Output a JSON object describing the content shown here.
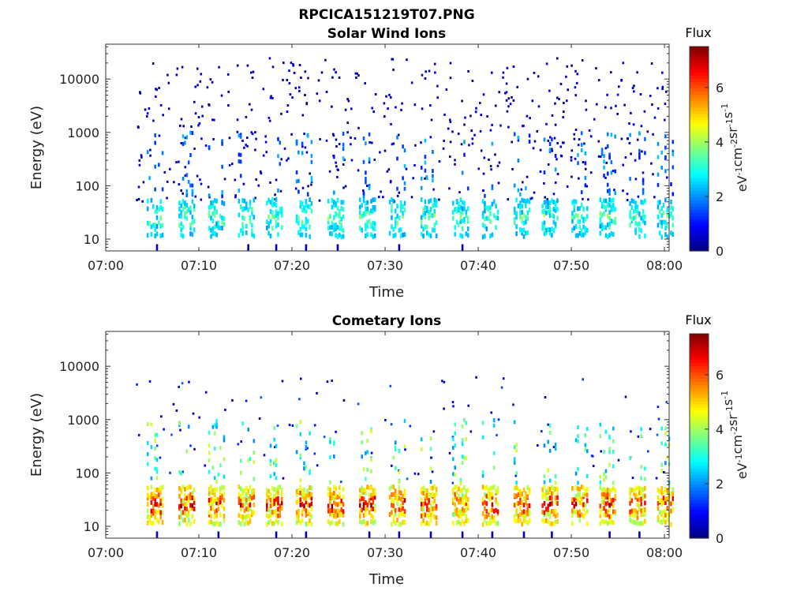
{
  "figure_title": "RPCICA151219T07.PNG",
  "colorbar": {
    "title": "Flux",
    "range": [
      0,
      7.5
    ],
    "ticks": [
      "0",
      "2",
      "4",
      "6"
    ],
    "colormap": "jet"
  },
  "chart_data": [
    {
      "type": "heatmap",
      "title": "Solar Wind Ions",
      "xlabel": "Time",
      "ylabel": "Energy (eV)",
      "ylabel_text": "Energy (eV)",
      "x_ticks": [
        "07:00",
        "07:10",
        "07:20",
        "07:30",
        "07:40",
        "07:50",
        "08:00"
      ],
      "y_ticks": [
        "10",
        "100",
        "1000",
        "10000"
      ],
      "x_range_min": [
        0,
        60.5
      ],
      "y_range": [
        6,
        45000
      ],
      "y_scale": "log",
      "colorbar_label": "eV-1cm-2sr-1s-1",
      "bursts_start_min": [
        4.4,
        7.8,
        11.0,
        14.2,
        17.2,
        20.4,
        23.8,
        27.2,
        30.4,
        33.8,
        37.2,
        40.4,
        43.8,
        46.8,
        50.0,
        53.0,
        56.2,
        59.2
      ],
      "band_flux": 3.5,
      "background_flux": 0.6
    },
    {
      "type": "heatmap",
      "title": "Cometary Ions",
      "xlabel": "Time",
      "ylabel": "Energy (eV)",
      "ylabel_text": "Energy (eV)",
      "x_ticks": [
        "07:00",
        "07:10",
        "07:20",
        "07:30",
        "07:40",
        "07:50",
        "08:00"
      ],
      "y_ticks": [
        "10",
        "100",
        "1000",
        "10000"
      ],
      "x_range_min": [
        0,
        60.5
      ],
      "y_range": [
        6,
        45000
      ],
      "y_scale": "log",
      "colorbar_label": "eV-1cm-2sr-1s-1",
      "bursts_start_min": [
        4.4,
        7.8,
        11.0,
        14.2,
        17.2,
        20.4,
        23.8,
        27.2,
        30.4,
        33.8,
        37.2,
        40.4,
        43.8,
        46.8,
        50.0,
        53.0,
        56.2,
        59.2
      ],
      "band_flux": 6.4,
      "background_flux": 1.2
    }
  ]
}
